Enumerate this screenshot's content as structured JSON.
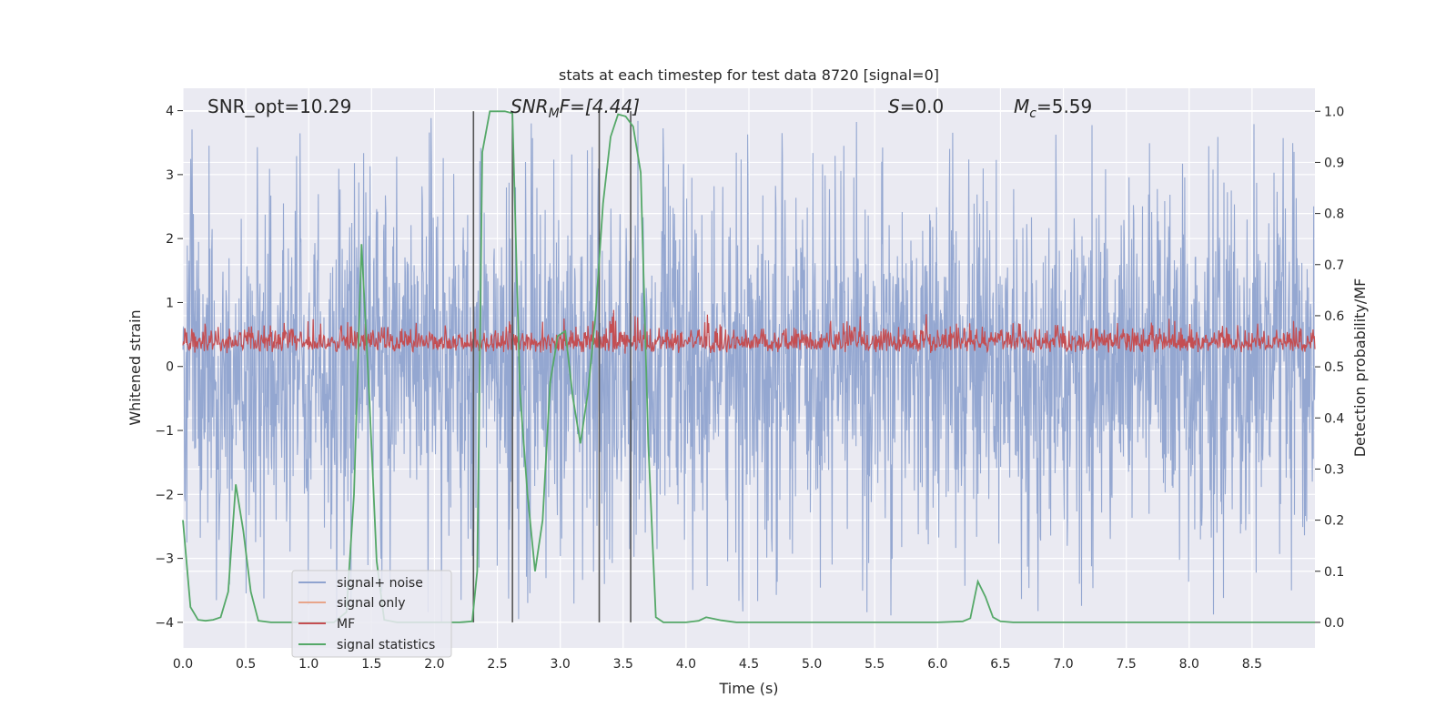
{
  "chart_data": {
    "type": "line",
    "title": "stats at each timestep for test data 8720 [signal=0]",
    "xlabel": "Time (s)",
    "ylabel": "Whitened strain",
    "y2label": "Detection probability/MF",
    "xlim": [
      0.0,
      9.0
    ],
    "ylim": [
      -4.4,
      4.35
    ],
    "y2lim": [
      -0.05,
      1.045
    ],
    "xticks": [
      "0.0",
      "0.5",
      "1.0",
      "1.5",
      "2.0",
      "2.5",
      "3.0",
      "3.5",
      "4.0",
      "4.5",
      "5.0",
      "5.5",
      "6.0",
      "6.5",
      "7.0",
      "7.5",
      "8.0",
      "8.5"
    ],
    "xtick_values": [
      0.0,
      0.5,
      1.0,
      1.5,
      2.0,
      2.5,
      3.0,
      3.5,
      4.0,
      4.5,
      5.0,
      5.5,
      6.0,
      6.5,
      7.0,
      7.5,
      8.0,
      8.5
    ],
    "yticks": [
      "4",
      "3",
      "2",
      "1",
      "0",
      "−1",
      "−2",
      "−3",
      "−4"
    ],
    "ytick_values": [
      4,
      3,
      2,
      1,
      0,
      -1,
      -2,
      -3,
      -4
    ],
    "y2ticks": [
      "1.0",
      "0.9",
      "0.8",
      "0.7",
      "0.6",
      "0.5",
      "0.4",
      "0.3",
      "0.2",
      "0.1",
      "0.0"
    ],
    "y2tick_values": [
      1.0,
      0.9,
      0.8,
      0.7,
      0.6,
      0.5,
      0.4,
      0.3,
      0.2,
      0.1,
      0.0
    ],
    "annotations": {
      "snr_opt": "SNR_opt=10.29",
      "snr_mf_main": "SNR",
      "snr_mf_sub": "M",
      "snr_mf_rest": "F=[4.44]",
      "s_italic": "S",
      "s_rest": "=0.0",
      "mc_main": "M",
      "mc_sub": "c",
      "mc_rest": "=5.59"
    },
    "legend": [
      {
        "label": "signal+ noise",
        "color": "#8fa3cf"
      },
      {
        "label": "signal only",
        "color": "#e8a58a"
      },
      {
        "label": "MF",
        "color": "#c44e52"
      },
      {
        "label": "signal statistics",
        "color": "#55a868"
      }
    ],
    "series": [
      {
        "name": "signal statistics",
        "axis": "right",
        "color": "#55a868",
        "x": [
          0.0,
          0.06,
          0.12,
          0.18,
          0.24,
          0.3,
          0.36,
          0.42,
          0.48,
          0.54,
          0.6,
          0.7,
          0.8,
          0.9,
          1.0,
          1.1,
          1.2,
          1.3,
          1.36,
          1.42,
          1.48,
          1.54,
          1.6,
          1.7,
          1.8,
          1.9,
          2.0,
          2.1,
          2.2,
          2.3,
          2.34,
          2.38,
          2.44,
          2.5,
          2.56,
          2.62,
          2.68,
          2.74,
          2.8,
          2.86,
          2.92,
          2.98,
          3.04,
          3.1,
          3.16,
          3.22,
          3.28,
          3.34,
          3.4,
          3.46,
          3.52,
          3.58,
          3.64,
          3.7,
          3.76,
          3.82,
          3.9,
          4.0,
          4.1,
          4.16,
          4.22,
          4.28,
          4.34,
          4.4,
          4.6,
          4.8,
          5.0,
          5.2,
          5.4,
          5.6,
          5.8,
          6.0,
          6.2,
          6.26,
          6.32,
          6.38,
          6.44,
          6.5,
          6.6,
          6.8,
          7.0,
          7.2,
          7.5,
          7.8,
          8.0,
          8.4,
          8.8,
          9.0
        ],
        "values": [
          0.2,
          0.03,
          0.005,
          0.003,
          0.005,
          0.01,
          0.06,
          0.27,
          0.18,
          0.06,
          0.003,
          0.0,
          0.0,
          0.0,
          0.0,
          0.0,
          0.0,
          0.02,
          0.25,
          0.74,
          0.45,
          0.12,
          0.005,
          0.0,
          0.0,
          0.0,
          0.0,
          0.0,
          0.0,
          0.002,
          0.1,
          0.92,
          1.0,
          1.0,
          1.0,
          0.996,
          0.45,
          0.25,
          0.1,
          0.2,
          0.47,
          0.56,
          0.57,
          0.44,
          0.35,
          0.45,
          0.6,
          0.82,
          0.95,
          0.994,
          0.99,
          0.97,
          0.88,
          0.35,
          0.01,
          0.0,
          0.0,
          0.0,
          0.003,
          0.01,
          0.007,
          0.004,
          0.002,
          0.0,
          0.0,
          0.0,
          0.0,
          0.0,
          0.0,
          0.0,
          0.0,
          0.0,
          0.002,
          0.008,
          0.08,
          0.05,
          0.01,
          0.002,
          0.0,
          0.0,
          0.0,
          0.0,
          0.0,
          0.0,
          0.0,
          0.0,
          0.0,
          0.0
        ]
      },
      {
        "name": "signal+ noise",
        "axis": "left",
        "color": "#8fa3cf",
        "amplitude_range": [
          -4.0,
          4.0
        ]
      },
      {
        "name": "MF",
        "axis": "left",
        "color": "#c44e52",
        "amplitude_range": [
          -0.05,
          1.0
        ]
      }
    ],
    "vertical_lines_time": [
      2.31,
      2.62,
      3.31,
      3.56
    ]
  }
}
